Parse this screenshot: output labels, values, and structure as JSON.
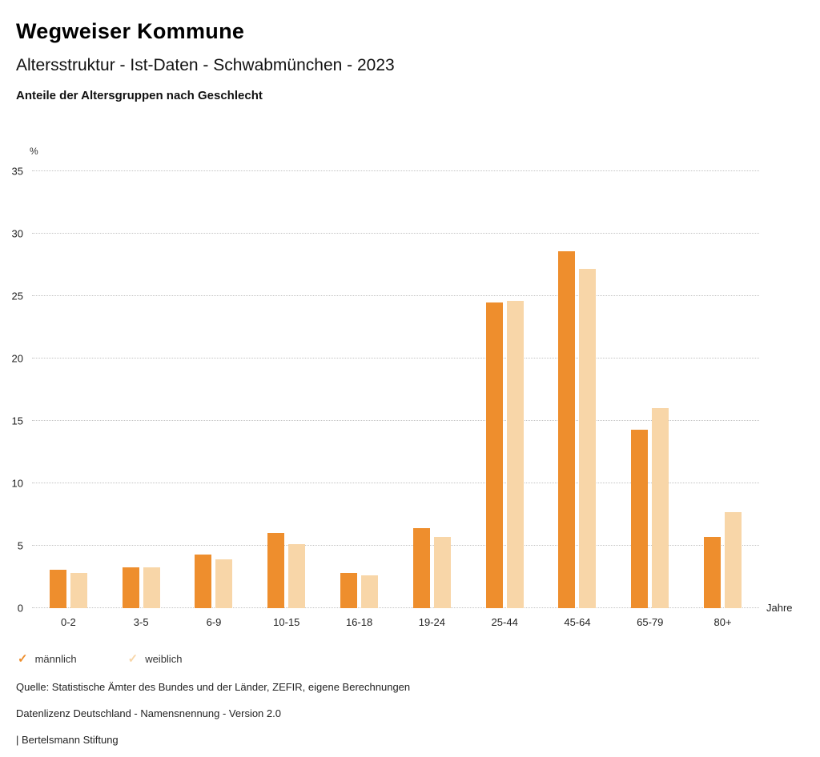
{
  "header": {
    "title": "Wegweiser Kommune",
    "subtitle": "Altersstruktur - Ist-Daten - Schwabmünchen - 2023",
    "chart_heading": "Anteile der Altersgruppen nach Geschlecht"
  },
  "chart_data": {
    "type": "bar",
    "title": "Anteile der Altersgruppen nach Geschlecht",
    "categories": [
      "0-2",
      "3-5",
      "6-9",
      "10-15",
      "16-18",
      "19-24",
      "25-44",
      "45-64",
      "65-79",
      "80+"
    ],
    "series": [
      {
        "name": "männlich",
        "color": "#ee8e2d",
        "values": [
          3.1,
          3.3,
          4.3,
          6.0,
          2.8,
          6.4,
          24.5,
          28.6,
          14.3,
          5.7
        ]
      },
      {
        "name": "weiblich",
        "color": "#f8d6a8",
        "values": [
          2.8,
          3.3,
          3.9,
          5.1,
          2.6,
          5.7,
          24.6,
          27.2,
          16.0,
          7.7
        ]
      }
    ],
    "ylabel": "%",
    "xlabel": "Jahre",
    "ylim": [
      0,
      35
    ],
    "ytick_step": 5,
    "grid": true,
    "grid_style": "dotted",
    "legend_position": "bottom"
  },
  "legend": {
    "check_icon": "✓",
    "items": [
      {
        "label": "männlich",
        "color": "#ee8e2d"
      },
      {
        "label": "weiblich",
        "color": "#f6c globale"
      }
    ]
  },
  "footer": {
    "source": "Quelle: Statistische Ämter des Bundes und der Länder, ZEFIR, eigene Berechnungen",
    "license": "Datenlizenz Deutschland - Namensnennung - Version 2.0",
    "attribution": "| Bertelsmann Stiftung"
  }
}
